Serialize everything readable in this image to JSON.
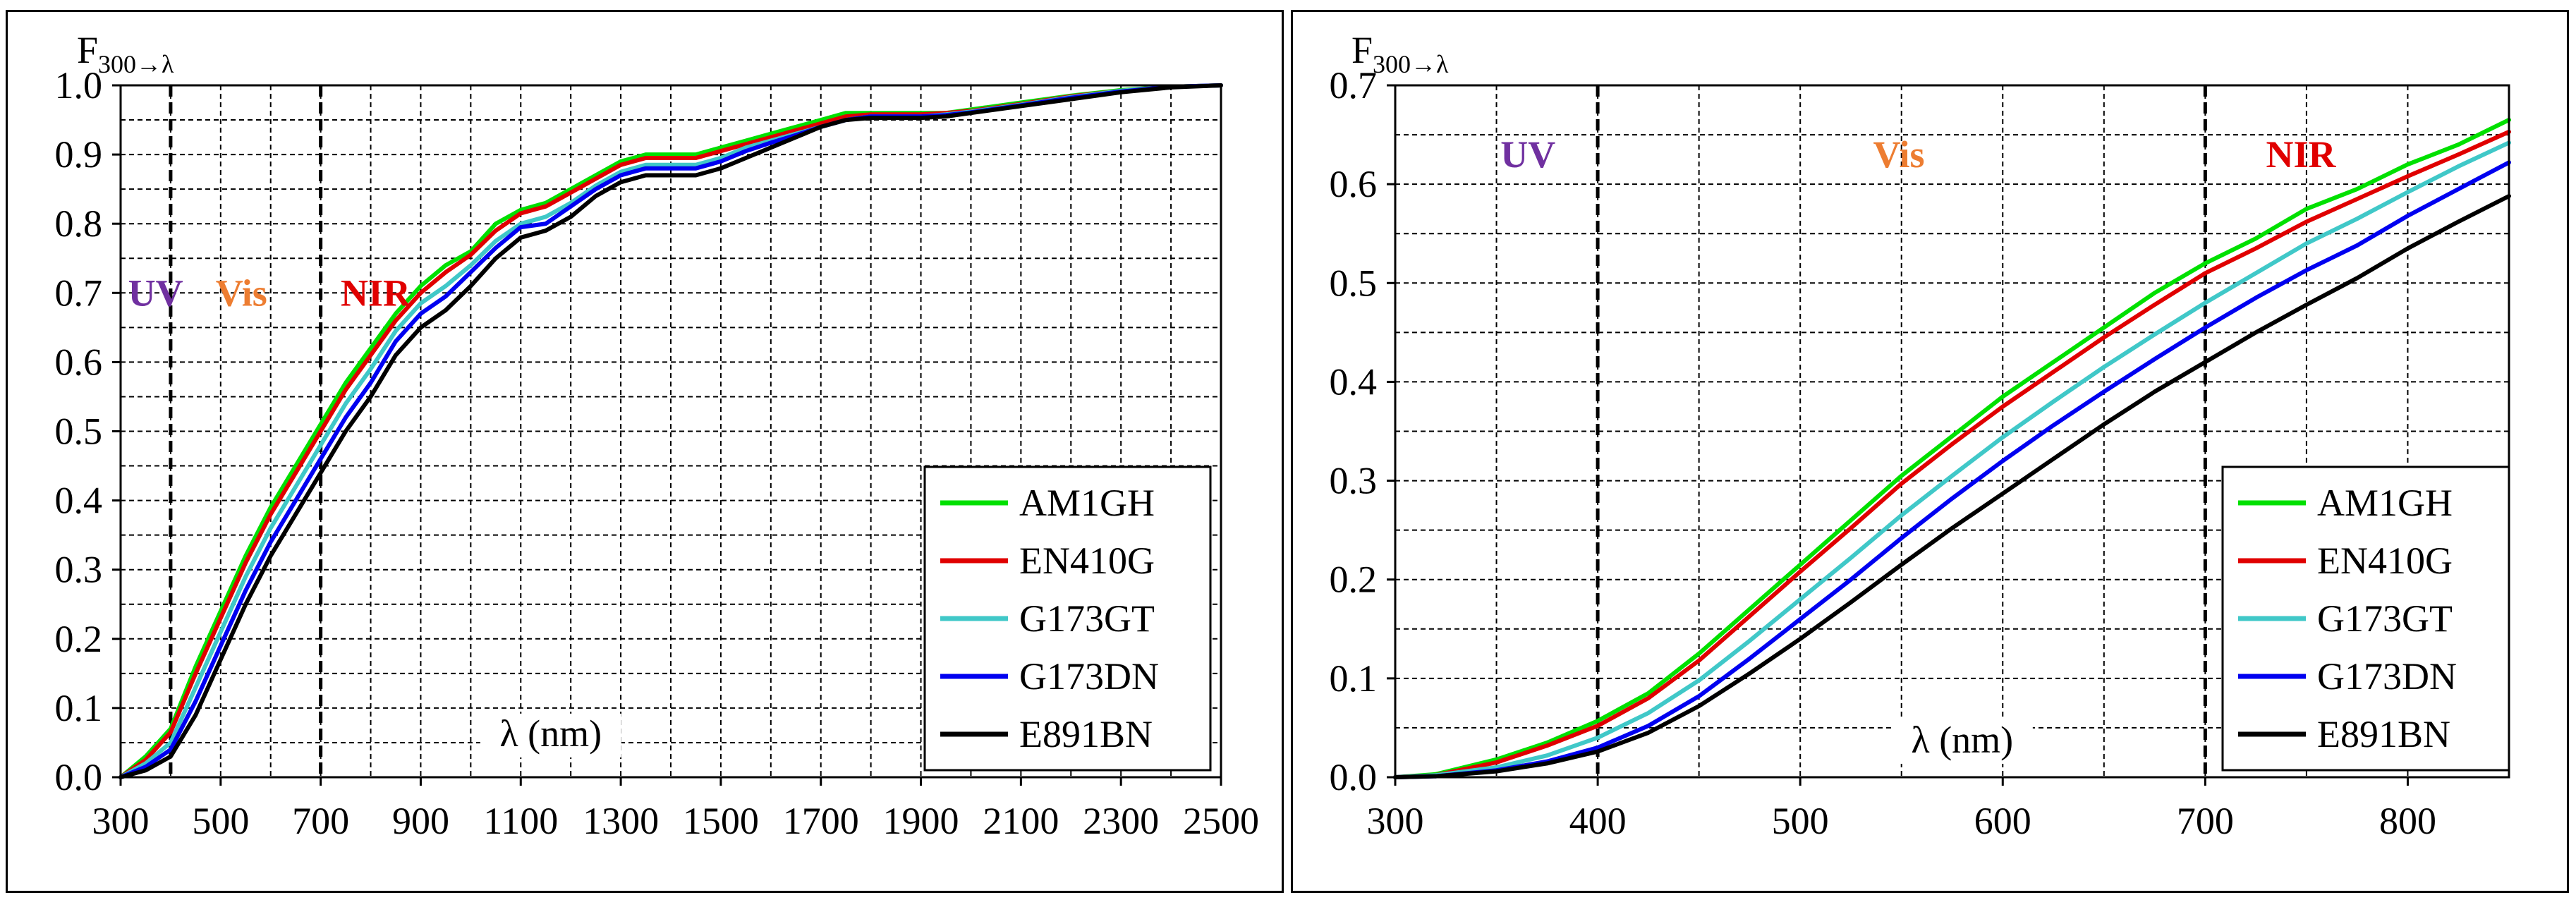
{
  "chart_data": [
    {
      "type": "line",
      "ylabel_main": "F",
      "ylabel_sub": "300→λ",
      "xlabel": "λ (nm)",
      "xlim": [
        300,
        2500
      ],
      "ylim": [
        0.0,
        1.0
      ],
      "x_ticks": [
        300,
        500,
        700,
        900,
        1100,
        1300,
        1500,
        1700,
        1900,
        2100,
        2300,
        2500
      ],
      "x_tick_labels": [
        "300",
        "500",
        "700",
        "900",
        "1100",
        "1300",
        "1500",
        "1700",
        "1900",
        "2100",
        "2300",
        "2500"
      ],
      "y_ticks": [
        0,
        0.1,
        0.2,
        0.3,
        0.4,
        0.5,
        0.6,
        0.7,
        0.8,
        0.9,
        1.0
      ],
      "y_tick_labels": [
        "0.0",
        "0.1",
        "0.2",
        "0.3",
        "0.4",
        "0.5",
        "0.6",
        "0.7",
        "0.8",
        "0.9",
        "1.0"
      ],
      "x_minor_step": 100,
      "y_minor_step": 0.05,
      "grid": true,
      "region_lines": [
        400,
        700
      ],
      "region_labels": [
        {
          "text": "UV",
          "x": 315,
          "y": 0.7,
          "color": "#7030A0"
        },
        {
          "text": "Vis",
          "x": 490,
          "y": 0.7,
          "color": "#ED7D31"
        },
        {
          "text": "NIR",
          "x": 740,
          "y": 0.7,
          "color": "#E00000"
        }
      ],
      "xlabel_position": {
        "x": 1160,
        "y": 0.045
      },
      "legend_placement": "bottom-right",
      "series": [
        {
          "name": "AM1GH",
          "color": "#00E000",
          "x": [
            300,
            350,
            400,
            450,
            500,
            550,
            600,
            650,
            700,
            750,
            800,
            850,
            900,
            950,
            1000,
            1050,
            1100,
            1150,
            1200,
            1250,
            1300,
            1350,
            1400,
            1450,
            1500,
            1550,
            1600,
            1650,
            1700,
            1750,
            1800,
            1850,
            1900,
            1950,
            2000,
            2100,
            2200,
            2300,
            2400,
            2500
          ],
          "y": [
            0,
            0.03,
            0.07,
            0.16,
            0.24,
            0.32,
            0.39,
            0.45,
            0.51,
            0.57,
            0.62,
            0.67,
            0.71,
            0.74,
            0.76,
            0.8,
            0.82,
            0.83,
            0.85,
            0.87,
            0.89,
            0.9,
            0.9,
            0.9,
            0.91,
            0.92,
            0.93,
            0.94,
            0.95,
            0.96,
            0.96,
            0.96,
            0.96,
            0.96,
            0.965,
            0.975,
            0.985,
            0.993,
            0.998,
            1.0
          ]
        },
        {
          "name": "EN410G",
          "color": "#E00000",
          "x": [
            300,
            350,
            400,
            450,
            500,
            550,
            600,
            650,
            700,
            750,
            800,
            850,
            900,
            950,
            1000,
            1050,
            1100,
            1150,
            1200,
            1250,
            1300,
            1350,
            1400,
            1450,
            1500,
            1550,
            1600,
            1650,
            1700,
            1750,
            1800,
            1850,
            1900,
            1950,
            2000,
            2100,
            2200,
            2300,
            2400,
            2500
          ],
          "y": [
            0,
            0.025,
            0.065,
            0.15,
            0.23,
            0.31,
            0.38,
            0.44,
            0.5,
            0.56,
            0.61,
            0.66,
            0.7,
            0.73,
            0.755,
            0.79,
            0.815,
            0.825,
            0.845,
            0.865,
            0.885,
            0.895,
            0.895,
            0.895,
            0.905,
            0.915,
            0.925,
            0.935,
            0.945,
            0.955,
            0.958,
            0.958,
            0.958,
            0.96,
            0.963,
            0.973,
            0.984,
            0.992,
            0.998,
            1.0
          ]
        },
        {
          "name": "G173GT",
          "color": "#40C8C8",
          "x": [
            300,
            350,
            400,
            450,
            500,
            550,
            600,
            650,
            700,
            750,
            800,
            850,
            900,
            950,
            1000,
            1050,
            1100,
            1150,
            1200,
            1250,
            1300,
            1350,
            1400,
            1450,
            1500,
            1550,
            1600,
            1650,
            1700,
            1750,
            1800,
            1850,
            1900,
            1950,
            2000,
            2100,
            2200,
            2300,
            2400,
            2500
          ],
          "y": [
            0,
            0.02,
            0.05,
            0.13,
            0.21,
            0.29,
            0.36,
            0.42,
            0.48,
            0.54,
            0.59,
            0.645,
            0.685,
            0.71,
            0.74,
            0.775,
            0.8,
            0.81,
            0.83,
            0.855,
            0.875,
            0.885,
            0.885,
            0.885,
            0.895,
            0.91,
            0.92,
            0.93,
            0.94,
            0.95,
            0.955,
            0.955,
            0.955,
            0.958,
            0.962,
            0.972,
            0.983,
            0.992,
            0.998,
            1.0
          ]
        },
        {
          "name": "G173DN",
          "color": "#0000F0",
          "x": [
            300,
            350,
            400,
            450,
            500,
            550,
            600,
            650,
            700,
            750,
            800,
            850,
            900,
            950,
            1000,
            1050,
            1100,
            1150,
            1200,
            1250,
            1300,
            1350,
            1400,
            1450,
            1500,
            1550,
            1600,
            1650,
            1700,
            1750,
            1800,
            1850,
            1900,
            1950,
            2000,
            2100,
            2200,
            2300,
            2400,
            2500
          ],
          "y": [
            0,
            0.015,
            0.04,
            0.11,
            0.19,
            0.27,
            0.34,
            0.4,
            0.46,
            0.52,
            0.57,
            0.63,
            0.67,
            0.695,
            0.73,
            0.765,
            0.795,
            0.8,
            0.825,
            0.85,
            0.87,
            0.88,
            0.88,
            0.88,
            0.89,
            0.905,
            0.917,
            0.928,
            0.94,
            0.95,
            0.955,
            0.955,
            0.955,
            0.957,
            0.961,
            0.971,
            0.982,
            0.991,
            0.998,
            1.0
          ]
        },
        {
          "name": "E891BN",
          "color": "#000000",
          "x": [
            300,
            350,
            400,
            450,
            500,
            550,
            600,
            650,
            700,
            750,
            800,
            850,
            900,
            950,
            1000,
            1050,
            1100,
            1150,
            1200,
            1250,
            1300,
            1350,
            1400,
            1450,
            1500,
            1550,
            1600,
            1650,
            1700,
            1750,
            1800,
            1850,
            1900,
            1950,
            2000,
            2100,
            2200,
            2300,
            2400,
            2500
          ],
          "y": [
            0,
            0.01,
            0.03,
            0.09,
            0.17,
            0.25,
            0.32,
            0.38,
            0.44,
            0.5,
            0.55,
            0.61,
            0.65,
            0.675,
            0.71,
            0.75,
            0.78,
            0.79,
            0.81,
            0.84,
            0.86,
            0.87,
            0.87,
            0.87,
            0.88,
            0.895,
            0.91,
            0.925,
            0.94,
            0.95,
            0.953,
            0.953,
            0.953,
            0.955,
            0.96,
            0.97,
            0.98,
            0.99,
            0.997,
            1.0
          ]
        }
      ]
    },
    {
      "type": "line",
      "ylabel_main": "F",
      "ylabel_sub": "300→λ",
      "xlabel": "λ (nm)",
      "xlim": [
        300,
        850
      ],
      "ylim": [
        0.0,
        0.7
      ],
      "x_ticks": [
        300,
        400,
        500,
        600,
        700,
        800
      ],
      "x_tick_labels": [
        "300",
        "400",
        "500",
        "600",
        "700",
        "800"
      ],
      "y_ticks": [
        0,
        0.1,
        0.2,
        0.3,
        0.4,
        0.5,
        0.6,
        0.7
      ],
      "y_tick_labels": [
        "0.0",
        "0.1",
        "0.2",
        "0.3",
        "0.4",
        "0.5",
        "0.6",
        "0.7"
      ],
      "x_minor_step": 50,
      "y_minor_step": 0.05,
      "grid": true,
      "region_lines": [
        400,
        700
      ],
      "region_labels": [
        {
          "text": "UV",
          "x": 352,
          "y": 0.63,
          "color": "#7030A0"
        },
        {
          "text": "Vis",
          "x": 536,
          "y": 0.63,
          "color": "#ED7D31"
        },
        {
          "text": "NIR",
          "x": 730,
          "y": 0.63,
          "color": "#E00000"
        }
      ],
      "xlabel_position": {
        "x": 580,
        "y": 0.025
      },
      "legend_placement": "bottom-right",
      "series": [
        {
          "name": "AM1GH",
          "color": "#00E000",
          "x": [
            300,
            320,
            350,
            375,
            400,
            425,
            450,
            475,
            500,
            525,
            550,
            575,
            600,
            625,
            650,
            675,
            700,
            725,
            750,
            775,
            800,
            825,
            850
          ],
          "y": [
            0,
            0.003,
            0.018,
            0.035,
            0.057,
            0.085,
            0.125,
            0.17,
            0.215,
            0.26,
            0.305,
            0.345,
            0.385,
            0.42,
            0.455,
            0.49,
            0.52,
            0.545,
            0.575,
            0.595,
            0.62,
            0.64,
            0.665
          ]
        },
        {
          "name": "EN410G",
          "color": "#E00000",
          "x": [
            300,
            320,
            350,
            375,
            400,
            425,
            450,
            475,
            500,
            525,
            550,
            575,
            600,
            625,
            650,
            675,
            700,
            725,
            750,
            775,
            800,
            825,
            850
          ],
          "y": [
            0,
            0.002,
            0.015,
            0.032,
            0.052,
            0.08,
            0.118,
            0.163,
            0.208,
            0.252,
            0.297,
            0.337,
            0.375,
            0.41,
            0.445,
            0.478,
            0.51,
            0.535,
            0.562,
            0.585,
            0.608,
            0.63,
            0.653
          ]
        },
        {
          "name": "G173GT",
          "color": "#40C8C8",
          "x": [
            300,
            320,
            350,
            375,
            400,
            425,
            450,
            475,
            500,
            525,
            550,
            575,
            600,
            625,
            650,
            675,
            700,
            725,
            750,
            775,
            800,
            825,
            850
          ],
          "y": [
            0,
            0.002,
            0.01,
            0.022,
            0.04,
            0.065,
            0.098,
            0.138,
            0.18,
            0.222,
            0.265,
            0.305,
            0.344,
            0.38,
            0.415,
            0.448,
            0.48,
            0.51,
            0.54,
            0.565,
            0.592,
            0.618,
            0.642
          ]
        },
        {
          "name": "G173DN",
          "color": "#0000F0",
          "x": [
            300,
            320,
            350,
            375,
            400,
            425,
            450,
            475,
            500,
            525,
            550,
            575,
            600,
            625,
            650,
            675,
            700,
            725,
            750,
            775,
            800,
            825,
            850
          ],
          "y": [
            0,
            0.001,
            0.007,
            0.016,
            0.03,
            0.052,
            0.082,
            0.12,
            0.16,
            0.2,
            0.242,
            0.282,
            0.32,
            0.356,
            0.39,
            0.423,
            0.455,
            0.485,
            0.513,
            0.538,
            0.568,
            0.595,
            0.622
          ]
        },
        {
          "name": "E891BN",
          "color": "#000000",
          "x": [
            300,
            320,
            350,
            375,
            400,
            425,
            450,
            475,
            500,
            525,
            550,
            575,
            600,
            625,
            650,
            675,
            700,
            725,
            750,
            775,
            800,
            825,
            850
          ],
          "y": [
            0,
            0.001,
            0.006,
            0.014,
            0.026,
            0.045,
            0.072,
            0.105,
            0.14,
            0.177,
            0.215,
            0.252,
            0.287,
            0.322,
            0.357,
            0.39,
            0.42,
            0.45,
            0.478,
            0.505,
            0.535,
            0.562,
            0.588
          ]
        }
      ]
    }
  ]
}
